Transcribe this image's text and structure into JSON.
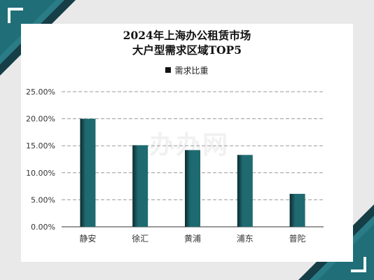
{
  "watermark": "办办网",
  "colors": {
    "background": "#e9e9e9",
    "accent": "#1f6e78",
    "accent_dark": "#163e47",
    "bar": "#1e6a70",
    "bar_dark": "#0c2a2e"
  },
  "chart_data": {
    "type": "bar",
    "title": [
      "2024年上海办公租赁市场",
      "大户型需求区域TOP5"
    ],
    "categories": [
      "静安",
      "徐汇",
      "黄浦",
      "浦东",
      "普陀"
    ],
    "series": [
      {
        "name": "需求比重",
        "values": [
          0.2,
          0.151,
          0.142,
          0.133,
          0.061
        ]
      }
    ],
    "ylim": [
      0,
      0.25
    ],
    "yticks": [
      0,
      0.05,
      0.1,
      0.15,
      0.2,
      0.25
    ],
    "ytick_labels": [
      "0.00%",
      "5.00%",
      "10.00%",
      "15.00%",
      "20.00%",
      "25.00%"
    ],
    "grid": true,
    "legend": "top-center"
  }
}
